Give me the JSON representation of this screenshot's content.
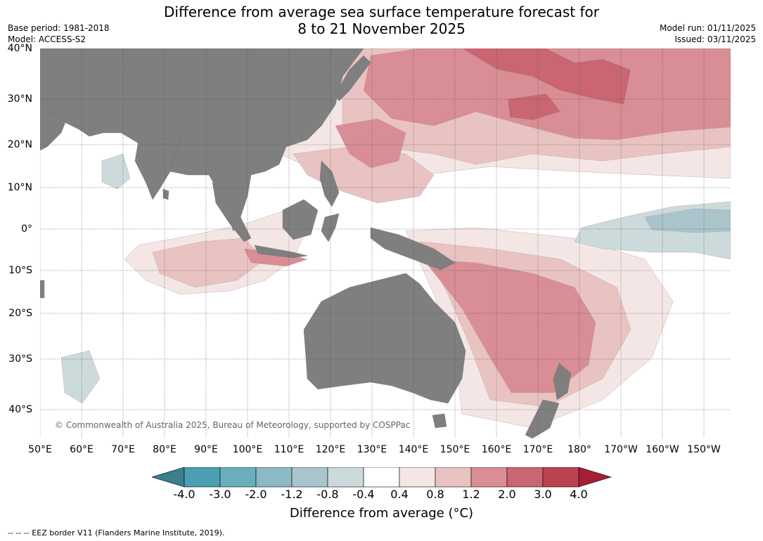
{
  "title": {
    "line1": "Difference from average sea surface temperature forecast for",
    "line2": "8 to 21 November 2025"
  },
  "meta": {
    "base_period": "Base period: 1981-2018",
    "model": "Model: ACCESS-S2",
    "model_run": "Model run: 01/11/2025",
    "issued": "Issued: 03/11/2025"
  },
  "map": {
    "land_color": "#7f7f7f",
    "ocean_color": "#ffffff",
    "lat_labels": [
      "40°N",
      "30°N",
      "20°N",
      "10°N",
      "0°",
      "10°S",
      "20°S",
      "30°S",
      "40°S"
    ],
    "lon_labels": [
      "50°E",
      "60°E",
      "70°E",
      "80°E",
      "90°E",
      "100°E",
      "110°E",
      "120°E",
      "130°E",
      "140°E",
      "150°E",
      "160°E",
      "170°E",
      "180°",
      "170°W",
      "160°W",
      "150°W"
    ],
    "copyright": "© Commonwealth of Australia 2025, Bureau of Meteorology, supported by COSPPac"
  },
  "colorbar": {
    "tick_labels": [
      "-4.0",
      "-3.0",
      "-2.0",
      "-1.2",
      "-0.8",
      "-0.4",
      "0.4",
      "0.8",
      "1.2",
      "2.0",
      "3.0",
      "4.0"
    ],
    "colors": [
      "#3a7f8b",
      "#4a9fb1",
      "#6aaebb",
      "#8cb9c4",
      "#a9c5cb",
      "#ccdadc",
      "#ffffff",
      "#f4e6e4",
      "#e8c3c1",
      "#d98d94",
      "#c96671",
      "#bb4250",
      "#a81d36"
    ],
    "label": "Difference from average (°C)"
  },
  "footer": "--  --  -- EEZ border V11 (Flanders Marine Institute, 2019)."
}
